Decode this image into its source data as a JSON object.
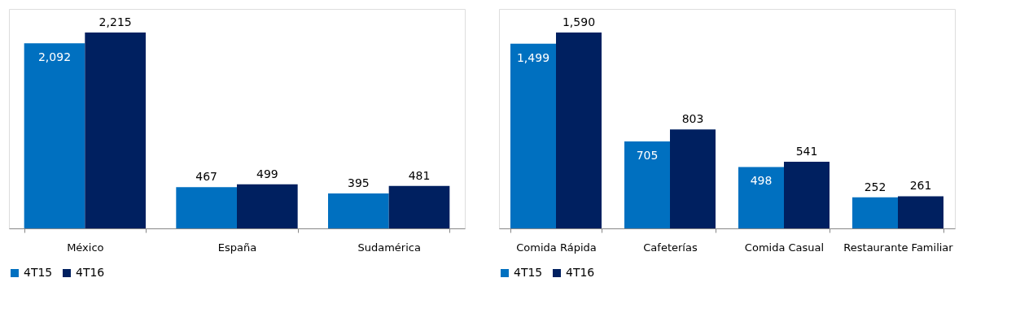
{
  "chart_data": [
    {
      "type": "bar",
      "categories": [
        "México",
        "España",
        "Sudamérica"
      ],
      "legend": "bottom",
      "grid": false,
      "series": [
        {
          "name": "4T15",
          "color": "#0070c0",
          "values": [
            2092,
            467,
            395
          ],
          "value_labels": [
            "2,092",
            "467",
            "395"
          ]
        },
        {
          "name": "4T16",
          "color": "#002060",
          "values": [
            2215,
            499,
            481
          ],
          "value_labels": [
            "2,215",
            "499",
            "481"
          ]
        }
      ]
    },
    {
      "type": "bar",
      "categories": [
        "Comida Rápida",
        "Cafeterías",
        "Comida Casual",
        "Restaurante Familiar"
      ],
      "legend": "bottom",
      "grid": false,
      "series": [
        {
          "name": "4T15",
          "color": "#0070c0",
          "values": [
            1499,
            705,
            498,
            252
          ],
          "value_labels": [
            "1,499",
            "705",
            "498",
            "252"
          ]
        },
        {
          "name": "4T16",
          "color": "#002060",
          "values": [
            1590,
            803,
            541,
            261
          ],
          "value_labels": [
            "1,590",
            "803",
            "541",
            "261"
          ]
        }
      ]
    }
  ]
}
